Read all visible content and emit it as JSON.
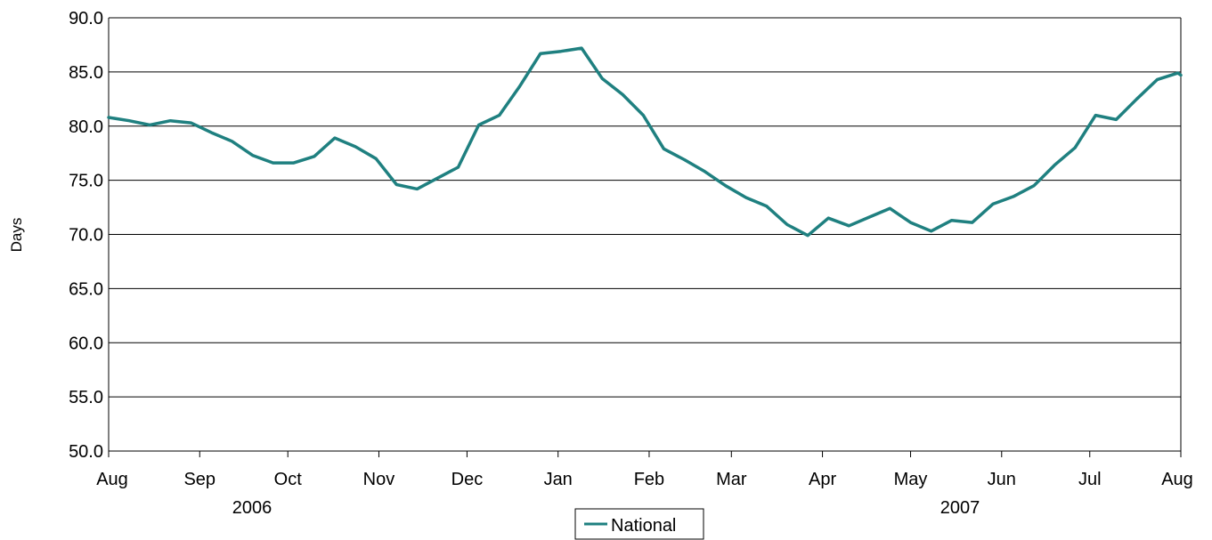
{
  "chart_data": {
    "type": "line",
    "title": "",
    "xlabel": "",
    "ylabel": "Days",
    "ylim": [
      50.0,
      90.0
    ],
    "yticks": [
      "50.0",
      "55.0",
      "60.0",
      "65.0",
      "70.0",
      "75.0",
      "80.0",
      "85.0",
      "90.0"
    ],
    "x_month_labels": [
      "Aug",
      "Sep",
      "Oct",
      "Nov",
      "Dec",
      "Jan",
      "Feb",
      "Mar",
      "Apr",
      "May",
      "Jun",
      "Jul",
      "Aug"
    ],
    "x_year_labels": [
      "2006",
      "2007"
    ],
    "x_start": "2006-08-01",
    "x_end": "2007-08-01",
    "grid": true,
    "legend_position": "bottom-center",
    "series": [
      {
        "name": "National",
        "color": "#1f8080",
        "points": [
          [
            "2006-08-01",
            80.8
          ],
          [
            "2006-08-08",
            80.5
          ],
          [
            "2006-08-15",
            80.1
          ],
          [
            "2006-08-22",
            80.5
          ],
          [
            "2006-08-29",
            80.3
          ],
          [
            "2006-09-05",
            79.4
          ],
          [
            "2006-09-12",
            78.6
          ],
          [
            "2006-09-19",
            77.3
          ],
          [
            "2006-09-26",
            76.6
          ],
          [
            "2006-10-03",
            76.6
          ],
          [
            "2006-10-10",
            77.2
          ],
          [
            "2006-10-17",
            78.9
          ],
          [
            "2006-10-24",
            78.1
          ],
          [
            "2006-10-31",
            77.0
          ],
          [
            "2006-11-07",
            74.6
          ],
          [
            "2006-11-14",
            74.2
          ],
          [
            "2006-11-21",
            75.2
          ],
          [
            "2006-11-28",
            76.2
          ],
          [
            "2006-12-05",
            80.1
          ],
          [
            "2006-12-12",
            81.0
          ],
          [
            "2006-12-19",
            83.7
          ],
          [
            "2006-12-26",
            86.7
          ],
          [
            "2007-01-02",
            86.9
          ],
          [
            "2007-01-09",
            87.2
          ],
          [
            "2007-01-16",
            84.4
          ],
          [
            "2007-01-23",
            82.9
          ],
          [
            "2007-01-30",
            81.0
          ],
          [
            "2007-02-06",
            77.9
          ],
          [
            "2007-02-13",
            76.9
          ],
          [
            "2007-02-20",
            75.8
          ],
          [
            "2007-02-27",
            74.5
          ],
          [
            "2007-03-06",
            73.4
          ],
          [
            "2007-03-13",
            72.6
          ],
          [
            "2007-03-20",
            70.9
          ],
          [
            "2007-03-27",
            69.9
          ],
          [
            "2007-04-03",
            71.5
          ],
          [
            "2007-04-10",
            70.8
          ],
          [
            "2007-04-17",
            71.6
          ],
          [
            "2007-04-24",
            72.4
          ],
          [
            "2007-05-01",
            71.1
          ],
          [
            "2007-05-08",
            70.3
          ],
          [
            "2007-05-15",
            71.3
          ],
          [
            "2007-05-22",
            71.1
          ],
          [
            "2007-05-29",
            72.8
          ],
          [
            "2007-06-05",
            73.5
          ],
          [
            "2007-06-12",
            74.5
          ],
          [
            "2007-06-19",
            76.4
          ],
          [
            "2007-06-26",
            78.0
          ],
          [
            "2007-07-03",
            81.0
          ],
          [
            "2007-07-10",
            80.6
          ],
          [
            "2007-07-17",
            82.5
          ],
          [
            "2007-07-24",
            84.3
          ],
          [
            "2007-07-31",
            84.9
          ],
          [
            "2007-08-01",
            84.7
          ]
        ]
      }
    ]
  }
}
